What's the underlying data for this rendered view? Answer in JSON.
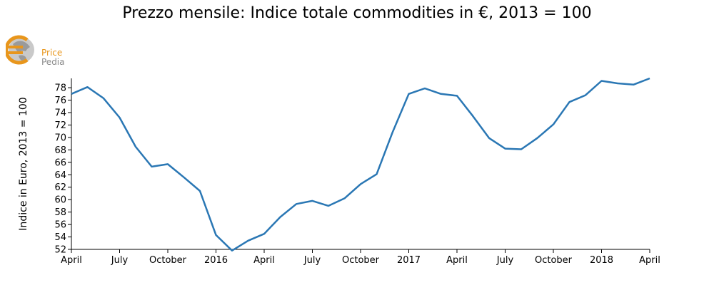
{
  "chart_data": {
    "type": "line",
    "title": "Prezzo mensile: Indice totale commodities in €, 2013 = 100",
    "ylabel": "Indice in Euro, 2013 = 100",
    "xlabel": "",
    "ylim": [
      52,
      79.5
    ],
    "yticks": [
      52,
      54,
      56,
      58,
      60,
      62,
      64,
      66,
      68,
      70,
      72,
      74,
      76,
      78
    ],
    "xticks": [
      {
        "label": "April",
        "date": "2015-04"
      },
      {
        "label": "July",
        "date": "2015-07"
      },
      {
        "label": "October",
        "date": "2015-10"
      },
      {
        "label": "2016",
        "date": "2016-01"
      },
      {
        "label": "April",
        "date": "2016-04"
      },
      {
        "label": "July",
        "date": "2016-07"
      },
      {
        "label": "October",
        "date": "2016-10"
      },
      {
        "label": "2017",
        "date": "2017-01"
      },
      {
        "label": "April",
        "date": "2017-04"
      },
      {
        "label": "July",
        "date": "2017-07"
      },
      {
        "label": "October",
        "date": "2017-10"
      },
      {
        "label": "2018",
        "date": "2018-01"
      },
      {
        "label": "April",
        "date": "2018-04"
      }
    ],
    "grid": false,
    "series": [
      {
        "color": "#2a77b4",
        "x": [
          "2015-04",
          "2015-05",
          "2015-06",
          "2015-07",
          "2015-08",
          "2015-09",
          "2015-10",
          "2015-11",
          "2015-12",
          "2016-01",
          "2016-02",
          "2016-03",
          "2016-04",
          "2016-05",
          "2016-06",
          "2016-07",
          "2016-08",
          "2016-09",
          "2016-10",
          "2016-11",
          "2016-12",
          "2017-01",
          "2017-02",
          "2017-03",
          "2017-04",
          "2017-05",
          "2017-06",
          "2017-07",
          "2017-08",
          "2017-09",
          "2017-10",
          "2017-11",
          "2017-12",
          "2018-01",
          "2018-02",
          "2018-03",
          "2018-04"
        ],
        "values": [
          77.0,
          78.1,
          76.3,
          73.2,
          68.5,
          65.3,
          65.7,
          63.6,
          61.4,
          54.3,
          51.8,
          53.4,
          54.5,
          57.2,
          59.3,
          59.8,
          59.0,
          60.2,
          62.5,
          64.1,
          70.9,
          77.0,
          77.9,
          77.0,
          76.7,
          73.4,
          69.9,
          68.2,
          68.1,
          69.9,
          72.1,
          75.7,
          76.8,
          79.1,
          78.7,
          78.5,
          79.5
        ]
      }
    ]
  },
  "logo": {
    "text_top": "Price",
    "text_bottom": "Pedia"
  }
}
